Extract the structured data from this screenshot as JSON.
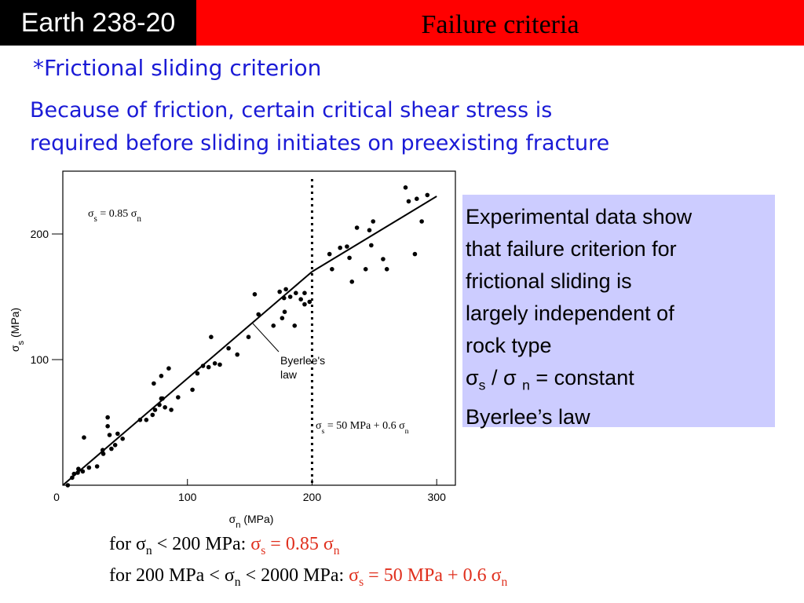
{
  "header": {
    "course": "Earth 238-20",
    "title": "Failure criteria"
  },
  "heading": "*Frictional sliding criterion",
  "intro": [
    "Because of friction, certain critical shear stress is",
    "required before sliding initiates on preexisting fracture"
  ],
  "chart_data": {
    "type": "scatter",
    "color": "#000000",
    "xlabel": [
      "σ",
      "n",
      " (MPa)"
    ],
    "ylabel": [
      "σ",
      "s",
      " (MPa)"
    ],
    "xlim": [
      0,
      315
    ],
    "ylim": [
      0,
      250
    ],
    "xticks": [
      0,
      100,
      200,
      300
    ],
    "yticks": [
      100,
      200
    ],
    "series": [
      {
        "color": "#000000",
        "x": [
          4,
          7.5,
          9,
          12,
          12.5,
          16,
          17,
          21,
          27.5,
          32,
          32.5,
          36,
          36,
          37.5,
          39,
          42,
          44,
          48,
          62,
          67,
          72,
          73,
          74,
          77.5,
          79,
          79,
          80,
          82,
          85,
          87,
          92.5,
          104,
          108,
          112.5,
          117,
          119,
          122,
          126,
          133,
          140,
          149,
          154,
          157,
          169,
          174,
          176,
          177.5,
          178,
          179,
          182.5,
          186,
          187,
          191,
          194,
          194,
          198,
          214,
          216,
          222.5,
          228,
          230,
          232,
          236,
          243,
          246,
          247.5,
          249,
          257,
          260,
          275,
          277.5,
          282.5,
          284,
          288,
          292.5
        ],
        "values": [
          0,
          6,
          9,
          10,
          13,
          11,
          38,
          14,
          15,
          28,
          25,
          54,
          47,
          40,
          29,
          32,
          41,
          37,
          52,
          52,
          56,
          81,
          60,
          64,
          69,
          87,
          69,
          62,
          93,
          60,
          70,
          76,
          89,
          95,
          94,
          118,
          97,
          96,
          109,
          104,
          118,
          152,
          136,
          127,
          154,
          133,
          149,
          138,
          156,
          150,
          127,
          153,
          148,
          144,
          153,
          146,
          184,
          172,
          189,
          190,
          181,
          162,
          205,
          172,
          203,
          191,
          210,
          180,
          172,
          237,
          226,
          184,
          228,
          210,
          231
        ]
      }
    ],
    "fit_lines": [
      {
        "x": [
          0,
          200
        ],
        "y": [
          0,
          170
        ]
      },
      {
        "x": [
          200,
          300
        ],
        "y": [
          170,
          230
        ]
      }
    ],
    "threshold_x": 200,
    "annotations": [
      [
        "σ",
        "s",
        " = 0.85 σ",
        "n"
      ],
      [
        "σ",
        "s",
        " = 50 MPa + 0.6 σ",
        "n"
      ]
    ],
    "law_label": [
      "Byerlee's",
      "law"
    ]
  },
  "textbox": {
    "lines": [
      "Experimental data show",
      "that failure criterion for",
      "frictional sliding is",
      "largely independent of",
      "rock type"
    ],
    "ratio": [
      "σ",
      "s",
      " / σ ",
      "n",
      " = constant"
    ],
    "law": "Byerlee’s law"
  },
  "footer": [
    {
      "black": [
        "for σ",
        "n",
        " < 200 MPa: "
      ],
      "red": [
        "σ",
        "s",
        " = 0.85 σ",
        "n"
      ]
    },
    {
      "black": [
        "for 200 MPa < σ",
        "n",
        " < 2000 MPa: "
      ],
      "red": [
        "σ",
        "s",
        " = 50 MPa + 0.6 σ",
        "n"
      ]
    }
  ]
}
